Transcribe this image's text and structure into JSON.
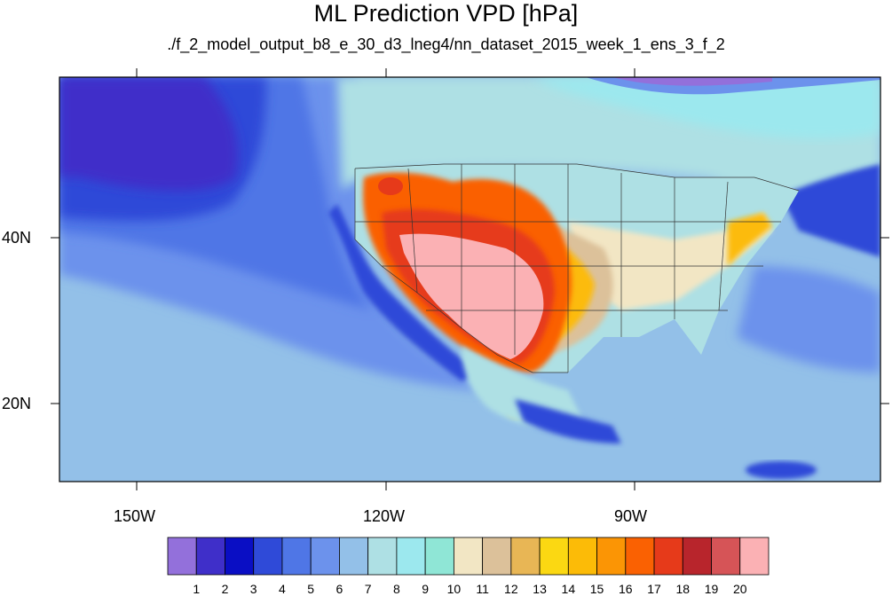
{
  "title": "ML Prediction VPD [hPa]",
  "subtitle": "./f_2_model_output_b8_e_30_d3_lneg4/nn_dataset_2015_week_1_ens_3_f_2",
  "x_axis": {
    "ticks": [
      "150W",
      "120W",
      "90W"
    ]
  },
  "y_axis": {
    "ticks": [
      "40N",
      "20N"
    ]
  },
  "colorbar": {
    "labels": [
      "1",
      "2",
      "3",
      "4",
      "5",
      "6",
      "7",
      "8",
      "9",
      "10",
      "11",
      "12",
      "13",
      "14",
      "15",
      "16",
      "17",
      "18",
      "19",
      "20"
    ],
    "colors": [
      "#9370db",
      "#3f2fc9",
      "#0a0ec4",
      "#2f4ad8",
      "#4f76e6",
      "#6c92ec",
      "#93c0e8",
      "#aee0e4",
      "#9ce8ee",
      "#8fe6d6",
      "#f2e6c4",
      "#dcc19a",
      "#e8b655",
      "#fbd812",
      "#fcbb07",
      "#fb9505",
      "#fa6102",
      "#e63a1a",
      "#b8252c",
      "#d65457",
      "#fbb1b4"
    ]
  },
  "colors": {
    "ocean_deep": "#2f4ad8",
    "ocean_mid": "#6c92ec",
    "ocean_light": "#93c0e8",
    "land_cool": "#aee0e4",
    "land_hot": "#fbb1b4",
    "border_line": "#333333"
  }
}
